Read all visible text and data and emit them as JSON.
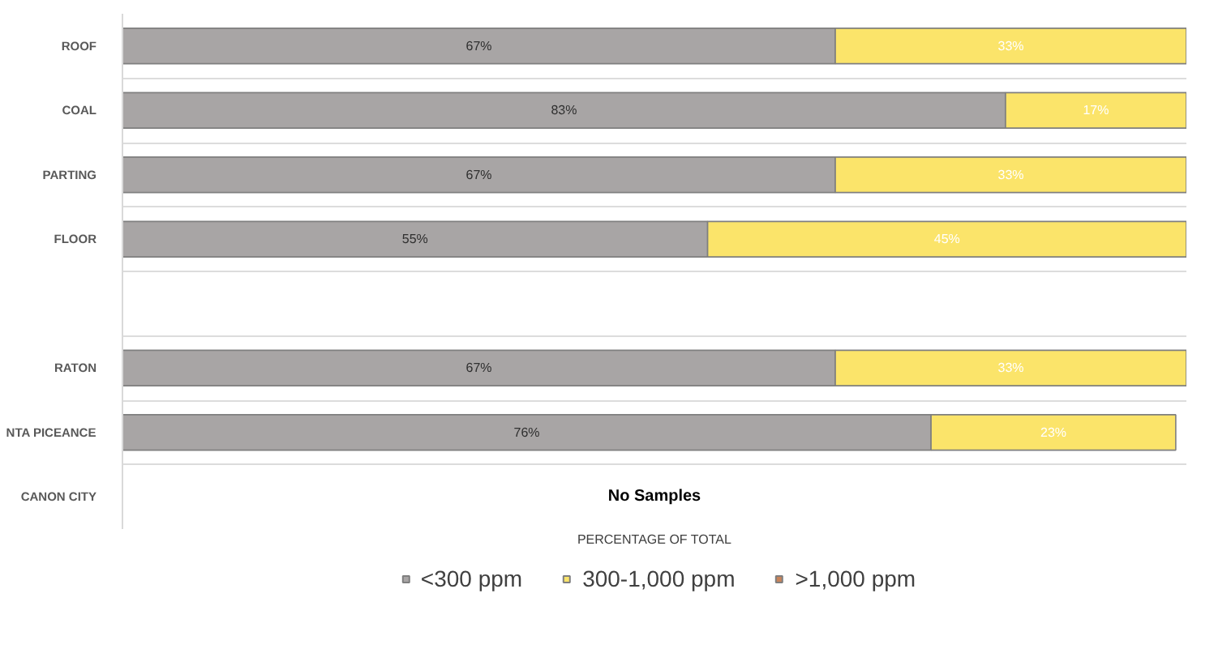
{
  "chart_data": {
    "type": "bar",
    "orientation": "horizontal",
    "stacked": true,
    "categories": [
      "ROOF",
      "COAL",
      "PARTING",
      "FLOOR",
      null,
      "RATON",
      "NTA PICEANCE",
      "CANON CITY"
    ],
    "series": [
      {
        "name": "<300 ppm",
        "color": "#a8a5a5",
        "values": [
          67,
          83,
          67,
          55,
          null,
          67,
          76,
          null
        ],
        "value_labels": [
          "67%",
          "83%",
          "67%",
          "55%",
          null,
          "67%",
          "76%",
          null
        ]
      },
      {
        "name": "300-1,000 ppm",
        "color": "#fbe46a",
        "values": [
          33,
          17,
          33,
          45,
          null,
          33,
          23,
          null
        ],
        "value_labels": [
          "33%",
          "17%",
          "33%",
          "45%",
          null,
          "33%",
          "23%",
          null
        ]
      },
      {
        "name": ">1,000 ppm",
        "color": "#c8845a",
        "values": [
          null,
          null,
          null,
          null,
          null,
          null,
          null,
          null
        ]
      }
    ],
    "xlabel": "PERCENTAGE OF TOTAL",
    "annotations": [
      "No Samples"
    ],
    "grid": "y",
    "legend": "bottom",
    "tick_labels": "y"
  }
}
